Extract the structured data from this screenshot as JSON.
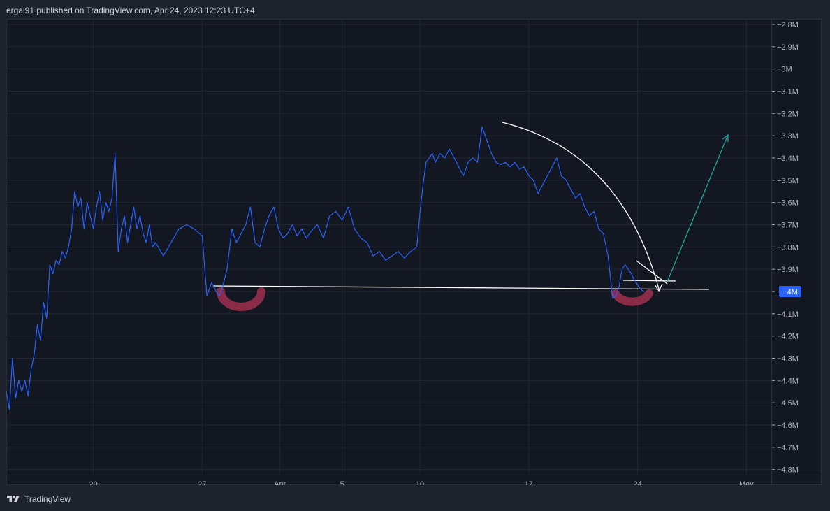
{
  "header": {
    "publish_line": "ergal91 published on TradingView.com, Apr 24, 2023 12:23 UTC+4"
  },
  "footer": {
    "brand": "TradingView"
  },
  "colors": {
    "background": "#131722",
    "grid": "#232632",
    "line": "#2962ff",
    "price_tag": "#2962ff",
    "annotation_white": "#ffffff",
    "annotation_green": "#26a69a",
    "highlight": "#a0304f"
  },
  "chart_data": {
    "type": "line",
    "y_ticks": [
      "−2.8M",
      "−2.9M",
      "−3M",
      "−3.1M",
      "−3.2M",
      "−3.3M",
      "−3.4M",
      "−3.5M",
      "−3.6M",
      "−3.7M",
      "−3.8M",
      "−3.9M",
      "−4M",
      "−4.1M",
      "−4.2M",
      "−4.3M",
      "−4.4M",
      "−4.5M",
      "−4.6M",
      "−4.7M",
      "−4.8M"
    ],
    "y_tick_values": [
      -2.8,
      -2.9,
      -3.0,
      -3.1,
      -3.2,
      -3.3,
      -3.4,
      -3.5,
      -3.6,
      -3.7,
      -3.8,
      -3.9,
      -4.0,
      -4.1,
      -4.2,
      -4.3,
      -4.4,
      -4.5,
      -4.6,
      -4.7,
      -4.8
    ],
    "ylim": [
      -4.823,
      -2.775
    ],
    "x_ticks": [
      "20",
      "27",
      "Apr",
      "5",
      "10",
      "17",
      "24",
      "May"
    ],
    "x_tick_days": [
      20,
      27,
      32,
      36,
      41,
      48,
      55,
      62
    ],
    "xlim": [
      14.4,
      63.6
    ],
    "current_value_label": "−4M",
    "current_value": -4.0,
    "series": [
      {
        "x": [
          14.4,
          14.6,
          14.8,
          15.0,
          15.2,
          15.4,
          15.6,
          15.8,
          16.0,
          16.2,
          16.4,
          16.6,
          16.8,
          17.0,
          17.2,
          17.4,
          17.6,
          17.8,
          18.0,
          18.2,
          18.4,
          18.6,
          18.8,
          19.0,
          19.2,
          19.4,
          19.6,
          19.8,
          20.0,
          20.2,
          20.4,
          20.6,
          20.8,
          21.0,
          21.2,
          21.4,
          21.6,
          21.8,
          22.0,
          22.2,
          22.4,
          22.6,
          22.8,
          23.0,
          23.2,
          23.4,
          23.6,
          23.8,
          24.0,
          24.5,
          25.0,
          25.5,
          26.0,
          26.5,
          27.0,
          27.3,
          27.6,
          27.9,
          28.1,
          28.3,
          28.6,
          28.9,
          29.2,
          29.5,
          29.8,
          30.1,
          30.4,
          30.7,
          31.0,
          31.3,
          31.6,
          31.9,
          32.2,
          32.5,
          32.8,
          33.1,
          33.4,
          33.7,
          34.0,
          34.4,
          34.8,
          35.2,
          35.6,
          36.0,
          36.4,
          36.8,
          37.2,
          37.6,
          38.0,
          38.4,
          38.8,
          39.2,
          39.6,
          40.0,
          40.4,
          40.8,
          41.0,
          41.2,
          41.4,
          41.6,
          41.8,
          42.0,
          42.3,
          42.6,
          42.9,
          43.2,
          43.5,
          43.8,
          44.1,
          44.4,
          44.7,
          45.0,
          45.3,
          45.6,
          45.9,
          46.2,
          46.5,
          46.8,
          47.1,
          47.4,
          47.7,
          48.0,
          48.3,
          48.6,
          48.9,
          49.2,
          49.5,
          49.8,
          50.1,
          50.4,
          50.7,
          51.0,
          51.3,
          51.6,
          51.9,
          52.2,
          52.5,
          52.8,
          53.1,
          53.4,
          53.6,
          53.8,
          54.0,
          54.2,
          54.4,
          54.6,
          54.8,
          55.0,
          55.2,
          55.4
        ],
        "values": [
          -4.45,
          -4.53,
          -4.3,
          -4.48,
          -4.4,
          -4.45,
          -4.4,
          -4.47,
          -4.35,
          -4.28,
          -4.15,
          -4.22,
          -4.05,
          -4.12,
          -3.88,
          -3.92,
          -3.86,
          -3.88,
          -3.82,
          -3.85,
          -3.8,
          -3.72,
          -3.55,
          -3.62,
          -3.58,
          -3.72,
          -3.6,
          -3.66,
          -3.72,
          -3.62,
          -3.55,
          -3.68,
          -3.6,
          -3.64,
          -3.58,
          -3.38,
          -3.82,
          -3.72,
          -3.66,
          -3.78,
          -3.7,
          -3.62,
          -3.72,
          -3.66,
          -3.74,
          -3.78,
          -3.7,
          -3.8,
          -3.78,
          -3.84,
          -3.78,
          -3.72,
          -3.7,
          -3.72,
          -3.75,
          -4.02,
          -3.96,
          -4.0,
          -4.02,
          -3.98,
          -3.9,
          -3.72,
          -3.78,
          -3.74,
          -3.7,
          -3.62,
          -3.78,
          -3.8,
          -3.72,
          -3.66,
          -3.62,
          -3.72,
          -3.76,
          -3.74,
          -3.7,
          -3.75,
          -3.72,
          -3.76,
          -3.73,
          -3.7,
          -3.76,
          -3.66,
          -3.64,
          -3.68,
          -3.62,
          -3.72,
          -3.76,
          -3.78,
          -3.84,
          -3.82,
          -3.86,
          -3.84,
          -3.82,
          -3.85,
          -3.82,
          -3.8,
          -3.65,
          -3.52,
          -3.42,
          -3.4,
          -3.38,
          -3.42,
          -3.38,
          -3.4,
          -3.36,
          -3.4,
          -3.44,
          -3.48,
          -3.42,
          -3.4,
          -3.42,
          -3.26,
          -3.32,
          -3.38,
          -3.42,
          -3.43,
          -3.42,
          -3.44,
          -3.42,
          -3.45,
          -3.44,
          -3.48,
          -3.5,
          -3.56,
          -3.52,
          -3.48,
          -3.44,
          -3.4,
          -3.48,
          -3.5,
          -3.54,
          -3.58,
          -3.56,
          -3.62,
          -3.66,
          -3.64,
          -3.72,
          -3.74,
          -3.84,
          -4.03,
          -4.02,
          -3.98,
          -3.9,
          -3.88,
          -3.9,
          -3.92,
          -3.95,
          -3.97,
          -3.99,
          -4.0
        ]
      }
    ]
  }
}
